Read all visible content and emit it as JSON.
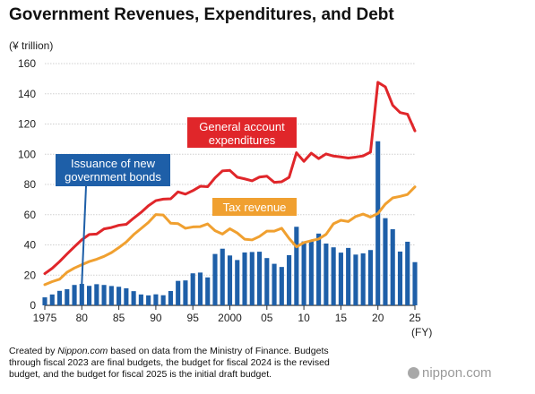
{
  "chart_data": {
    "type": "bar+line",
    "title": "Government Revenues, Expenditures, and Debt",
    "ylabel": "(¥ trillion)",
    "xlabel": "(FY)",
    "ylim": [
      0,
      160
    ],
    "yticks": [
      0,
      20,
      40,
      60,
      80,
      100,
      120,
      140,
      160
    ],
    "xlim": [
      1975,
      2025
    ],
    "xticks": [
      {
        "year": 1975,
        "label": "1975"
      },
      {
        "year": 1980,
        "label": "80"
      },
      {
        "year": 1985,
        "label": "85"
      },
      {
        "year": 1990,
        "label": "90"
      },
      {
        "year": 1995,
        "label": "95"
      },
      {
        "year": 2000,
        "label": "2000"
      },
      {
        "year": 2005,
        "label": "05"
      },
      {
        "year": 2010,
        "label": "10"
      },
      {
        "year": 2015,
        "label": "15"
      },
      {
        "year": 2020,
        "label": "20"
      },
      {
        "year": 2025,
        "label": "25"
      }
    ],
    "x": [
      1975,
      1976,
      1977,
      1978,
      1979,
      1980,
      1981,
      1982,
      1983,
      1984,
      1985,
      1986,
      1987,
      1988,
      1989,
      1990,
      1991,
      1992,
      1993,
      1994,
      1995,
      1996,
      1997,
      1998,
      1999,
      2000,
      2001,
      2002,
      2003,
      2004,
      2005,
      2006,
      2007,
      2008,
      2009,
      2010,
      2011,
      2012,
      2013,
      2014,
      2015,
      2016,
      2017,
      2018,
      2019,
      2020,
      2021,
      2022,
      2023,
      2024,
      2025
    ],
    "grid": true,
    "series": [
      {
        "name": "General account expenditures",
        "type": "line",
        "color": "#e0262a",
        "values": [
          21,
          24.5,
          29,
          34,
          38.8,
          43.4,
          46.9,
          47.2,
          50.6,
          51.5,
          53,
          53.6,
          57.7,
          61.5,
          65.9,
          69.3,
          70.3,
          70.5,
          75.1,
          73.6,
          75.9,
          78.8,
          78.5,
          84.4,
          89,
          89.3,
          84.8,
          83.7,
          82.4,
          84.9,
          85.5,
          81.4,
          81.8,
          84.7,
          101,
          95.3,
          100.7,
          97.1,
          100.2,
          98.8,
          98.2,
          97.5,
          98.1,
          98.9,
          101.4,
          147.6,
          144.6,
          132.4,
          127.6,
          126.5,
          115.5
        ]
      },
      {
        "name": "Tax revenue",
        "type": "line",
        "color": "#f0a030",
        "values": [
          13.7,
          15.7,
          17.3,
          21.9,
          24.7,
          26.9,
          29,
          30.5,
          32.4,
          34.9,
          38.2,
          41.9,
          46.8,
          50.8,
          54.9,
          60.1,
          59.8,
          54.4,
          54.1,
          51,
          51.9,
          52.1,
          53.9,
          49.4,
          47.2,
          50.7,
          47.9,
          43.8,
          43.3,
          45.6,
          49.1,
          49.1,
          51,
          44.3,
          38.7,
          41.5,
          42.8,
          43.9,
          47,
          54,
          56.3,
          55.5,
          58.8,
          60.4,
          58.4,
          60.8,
          67,
          71.1,
          72.1,
          73.4,
          78.4
        ]
      },
      {
        "name": "Issuance of new government bonds",
        "type": "bar",
        "color": "#1e5fa8",
        "values": [
          5.3,
          7.2,
          9.6,
          10.7,
          13.5,
          14.2,
          12.9,
          14,
          13.5,
          12.8,
          12.3,
          11.3,
          9.4,
          7.2,
          6.6,
          7.3,
          6.7,
          9.5,
          16.2,
          16.5,
          21.2,
          21.7,
          18.5,
          34,
          37.5,
          33,
          30,
          35,
          35.3,
          35.5,
          31.3,
          27.5,
          25.4,
          33.2,
          52,
          42.3,
          42.8,
          47.5,
          40.9,
          38.4,
          34.9,
          38,
          33.6,
          34.4,
          36.6,
          108.6,
          57.7,
          50.4,
          35.6,
          42.1,
          28.6
        ]
      }
    ],
    "annotations": {
      "expenditures": "General account\nexpenditures",
      "tax": "Tax revenue",
      "bonds": "Issuance of new\ngovernment bonds"
    }
  },
  "footer": {
    "note_prefix": "Created by ",
    "note_source": "Nippon.com",
    "note_rest": " based on data from the Ministry of Finance. Budgets through fiscal 2023 are final budgets, the budget for fiscal 2024 is the revised budget, and the budget for fiscal 2025 is the initial draft budget.",
    "brand": "nippon.com"
  }
}
